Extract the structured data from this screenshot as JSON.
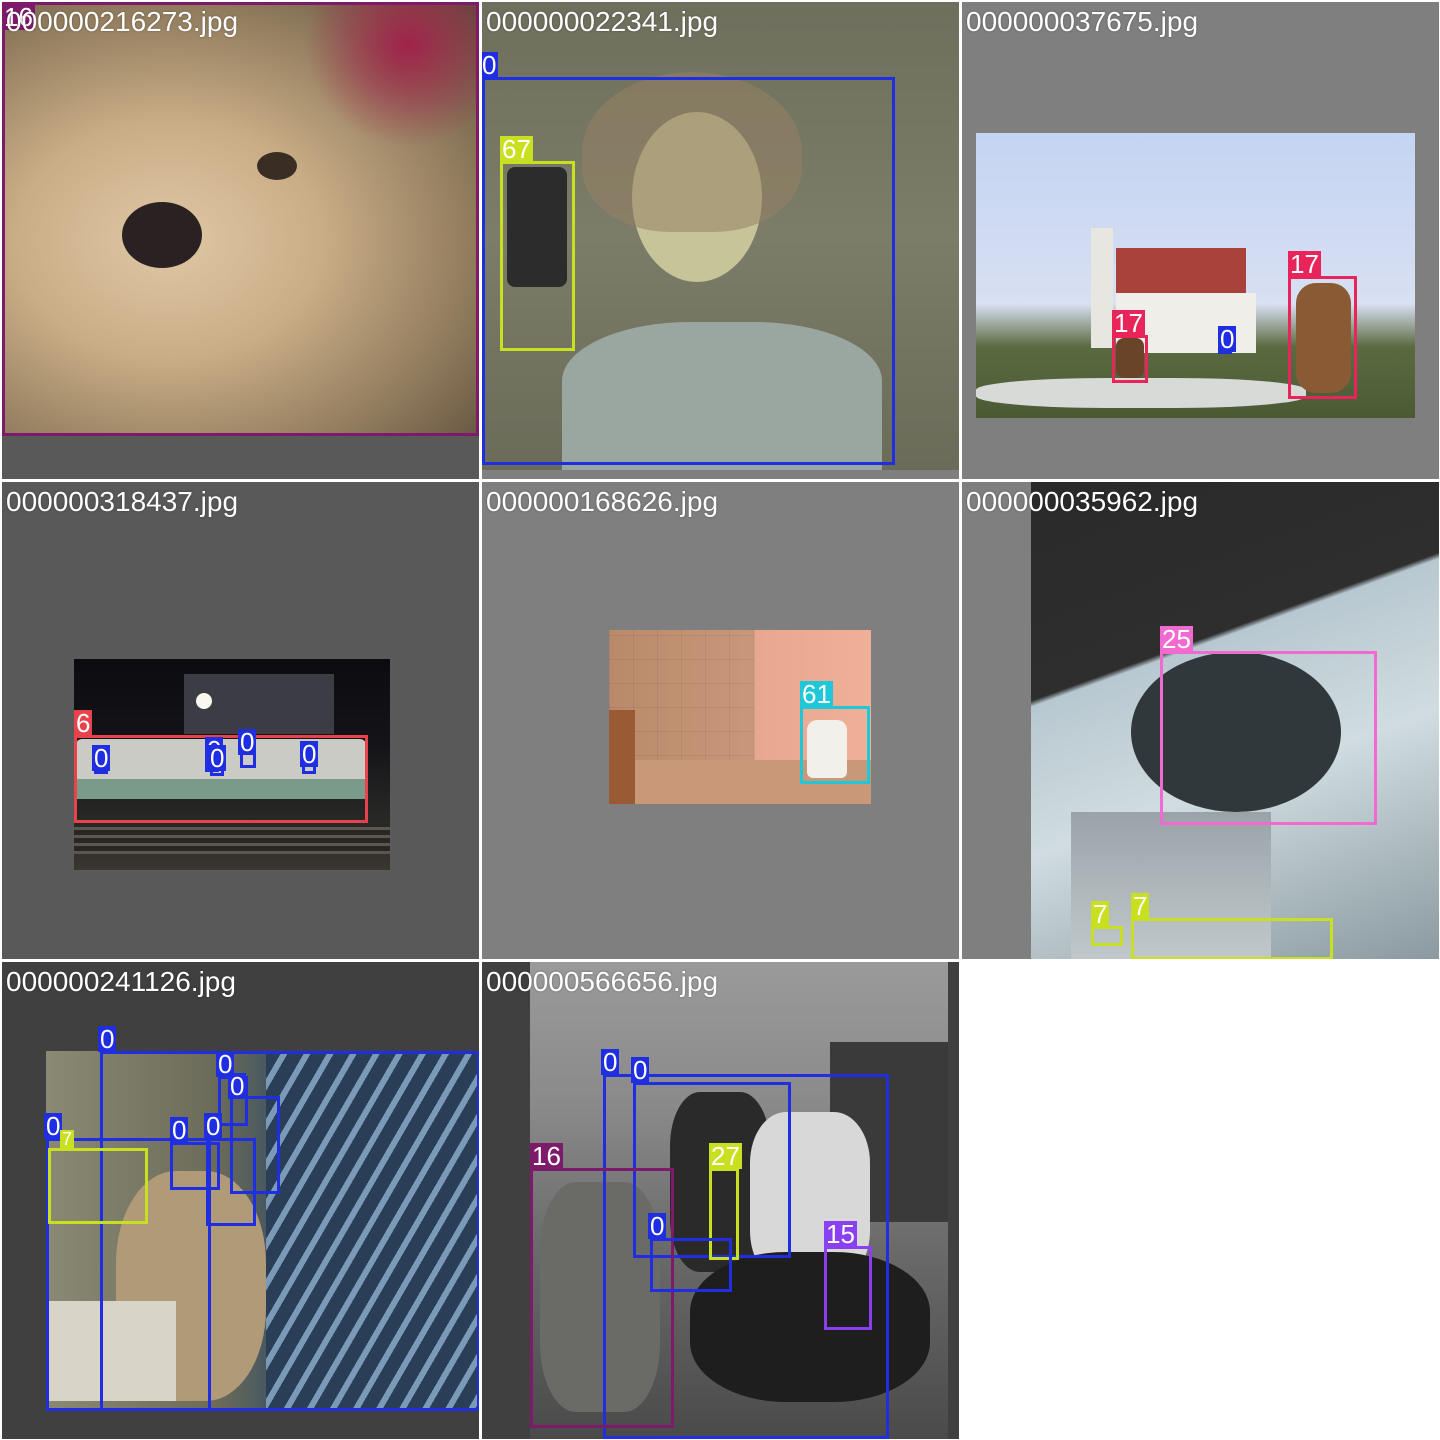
{
  "colors": {
    "class_0": "#1f2ee0",
    "class_6": "#e8434d",
    "class_7": "#c9e020",
    "class_15": "#8a3ff0",
    "class_16": "#7d1a6a",
    "class_17": "#e8245a",
    "class_25": "#f06ad0",
    "class_27": "#c9e020",
    "class_61": "#1ec8d8",
    "class_67": "#c9e020",
    "pad_light": "#7f7f7f",
    "pad_dark": "#595959",
    "pad_darker": "#404040"
  },
  "tiles": [
    {
      "filename": "000000216273.jpg",
      "labels": [
        "16"
      ]
    },
    {
      "filename": "000000022341.jpg",
      "labels": [
        "0",
        "67"
      ]
    },
    {
      "filename": "000000037675.jpg",
      "labels": [
        "17",
        "17",
        "0"
      ]
    },
    {
      "filename": "000000318437.jpg",
      "labels": [
        "6",
        "0",
        "0",
        "0",
        "0",
        "0"
      ]
    },
    {
      "filename": "000000168626.jpg",
      "labels": [
        "61"
      ]
    },
    {
      "filename": "000000035962.jpg",
      "labels": [
        "25",
        "7",
        "7"
      ]
    },
    {
      "filename": "000000241126.jpg",
      "labels": [
        "0",
        "0",
        "0",
        "0",
        "0",
        "0",
        "7"
      ]
    },
    {
      "filename": "000000566656.jpg",
      "labels": [
        "0",
        "0",
        "16",
        "27",
        "0",
        "15"
      ]
    }
  ]
}
